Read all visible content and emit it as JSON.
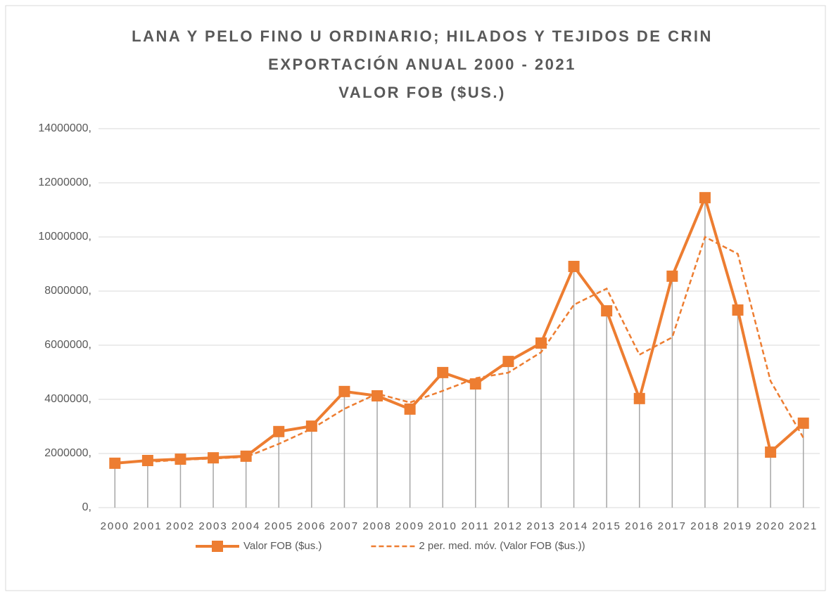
{
  "chart_data": {
    "type": "line",
    "title": [
      "LANA Y PELO FINO U ORDINARIO; HILADOS Y TEJIDOS DE CRIN",
      "EXPORTACIÓN ANUAL 2000 - 2021",
      "VALOR FOB ($US.)"
    ],
    "categories": [
      "2000",
      "2001",
      "2002",
      "2003",
      "2004",
      "2005",
      "2006",
      "2007",
      "2008",
      "2009",
      "2010",
      "2011",
      "2012",
      "2013",
      "2014",
      "2015",
      "2016",
      "2017",
      "2018",
      "2019",
      "2020",
      "2021"
    ],
    "series": [
      {
        "name": "Valor FOB ($us.)",
        "color": "#ed7d31",
        "style": "solid",
        "values": [
          1640000,
          1740000,
          1790000,
          1840000,
          1900000,
          2810000,
          3010000,
          4290000,
          4130000,
          3640000,
          4990000,
          4570000,
          5400000,
          6080000,
          8910000,
          7270000,
          4030000,
          8550000,
          11450000,
          7300000,
          2050000,
          3120000
        ]
      },
      {
        "name": "2 per. med. móv. (Valor FOB ($us.))",
        "color": "#ed7d31",
        "style": "dashed",
        "values": [
          null,
          1690000,
          1765000,
          1815000,
          1870000,
          2355000,
          2910000,
          3650000,
          4210000,
          3885000,
          4315000,
          4780000,
          4985000,
          5740000,
          7495000,
          8090000,
          5650000,
          6290000,
          10000000,
          9375000,
          4675000,
          2585000
        ]
      }
    ],
    "ylim": [
      0,
      14000000
    ],
    "yticks": [
      {
        "value": 0,
        "label": "0,"
      },
      {
        "value": 2000000,
        "label": "2000000,"
      },
      {
        "value": 4000000,
        "label": "4000000,"
      },
      {
        "value": 6000000,
        "label": "6000000,"
      },
      {
        "value": 8000000,
        "label": "8000000,"
      },
      {
        "value": 10000000,
        "label": "10000000,"
      },
      {
        "value": 12000000,
        "label": "12000000,"
      },
      {
        "value": 14000000,
        "label": "14000000,"
      }
    ],
    "grid": true,
    "drop_lines": true,
    "legend": "bottom"
  }
}
